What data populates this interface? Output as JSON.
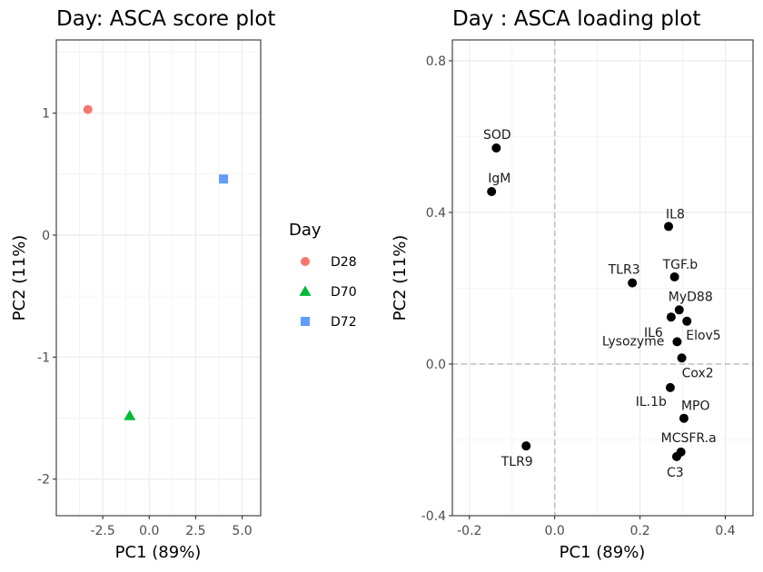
{
  "chart_data": [
    {
      "type": "scatter",
      "title": "Day: ASCA score plot",
      "xlabel": "PC1 (89%)",
      "ylabel": "PC2 (11%)",
      "xlim": [
        -5.0,
        6.0
      ],
      "ylim": [
        -2.3,
        1.6
      ],
      "xticks": [
        -2.5,
        0.0,
        2.5,
        5.0
      ],
      "xtick_labels": [
        "-2.5",
        "0.0",
        "2.5",
        "5.0"
      ],
      "yticks": [
        -2,
        -1,
        0,
        1
      ],
      "ytick_labels": [
        "-2",
        "-1",
        "0",
        "1"
      ],
      "grid": true,
      "legend": {
        "title": "Day",
        "placement": "right",
        "entries": [
          {
            "label": "D28",
            "color": "#F8766D",
            "shape": "circle"
          },
          {
            "label": "D70",
            "color": "#00BA38",
            "shape": "triangle"
          },
          {
            "label": "D72",
            "color": "#619CFF",
            "shape": "square"
          }
        ]
      },
      "series": [
        {
          "name": "D28",
          "points": [
            {
              "x": -3.3,
              "y": 1.03
            }
          ]
        },
        {
          "name": "D70",
          "points": [
            {
              "x": -1.05,
              "y": -1.48
            }
          ]
        },
        {
          "name": "D72",
          "points": [
            {
              "x": 4.0,
              "y": 0.46
            }
          ]
        }
      ]
    },
    {
      "type": "scatter",
      "title": "Day : ASCA loading plot",
      "xlabel": "PC1 (89%)",
      "ylabel": "PC2 (11%)",
      "xlim": [
        -0.24,
        0.465
      ],
      "ylim": [
        -0.4,
        0.855
      ],
      "xticks": [
        -0.2,
        0.0,
        0.2,
        0.4
      ],
      "xtick_labels": [
        "-0.2",
        "0.0",
        "0.2",
        "0.4"
      ],
      "yticks": [
        -0.4,
        0.0,
        0.4,
        0.8
      ],
      "ytick_labels": [
        "-0.4",
        "0.0",
        "0.4",
        "0.8"
      ],
      "grid": true,
      "reference_lines": {
        "x": 0,
        "y": 0,
        "style": "dashed"
      },
      "point_color": "#000000",
      "points": [
        {
          "label": "SOD",
          "x": -0.137,
          "y": 0.57
        },
        {
          "label": "IgM",
          "x": -0.148,
          "y": 0.455
        },
        {
          "label": "IL8",
          "x": 0.267,
          "y": 0.363
        },
        {
          "label": "TLR3",
          "x": 0.182,
          "y": 0.214
        },
        {
          "label": "TGF.b",
          "x": 0.281,
          "y": 0.23
        },
        {
          "label": "MyD88",
          "x": 0.292,
          "y": 0.143
        },
        {
          "label": "IL6",
          "x": 0.273,
          "y": 0.124
        },
        {
          "label": "Elov5",
          "x": 0.31,
          "y": 0.113
        },
        {
          "label": "Lysozyme",
          "x": 0.287,
          "y": 0.059
        },
        {
          "label": "Cox2",
          "x": 0.298,
          "y": 0.016
        },
        {
          "label": "IL.1b",
          "x": 0.271,
          "y": -0.062
        },
        {
          "label": "MPO",
          "x": 0.303,
          "y": -0.143
        },
        {
          "label": "MCSFR.a",
          "x": 0.296,
          "y": -0.232
        },
        {
          "label": "C3",
          "x": 0.286,
          "y": -0.244
        },
        {
          "label": "TLR9",
          "x": -0.067,
          "y": -0.216
        }
      ]
    }
  ]
}
